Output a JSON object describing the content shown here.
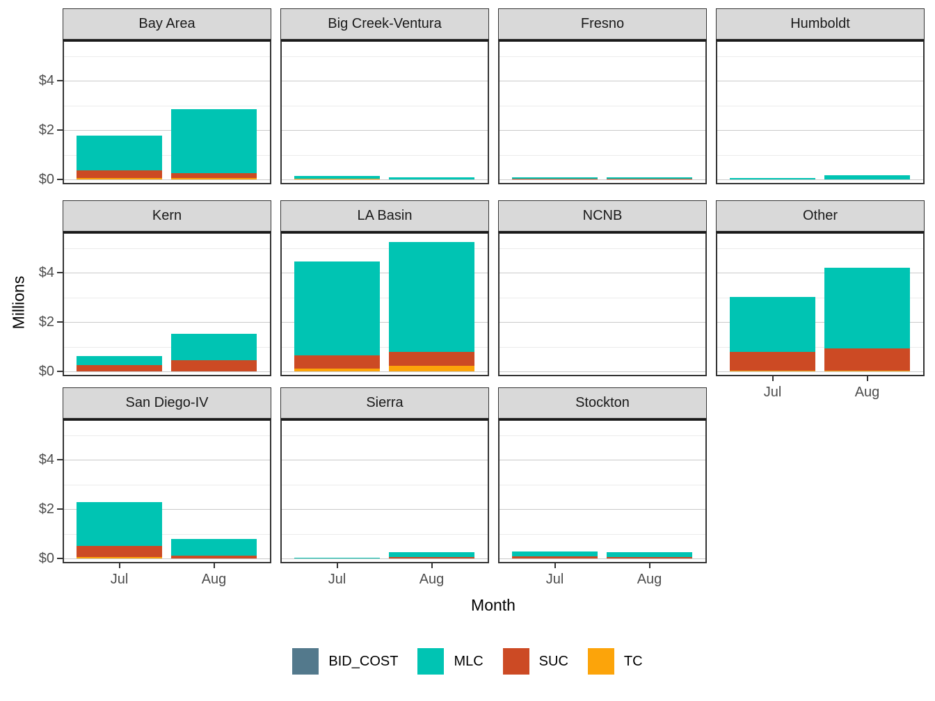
{
  "chart_data": {
    "type": "bar",
    "stacked": true,
    "title": "",
    "xlabel": "Month",
    "ylabel": "Millions",
    "categories": [
      "Jul",
      "Aug"
    ],
    "ylim": [
      0,
      5.72
    ],
    "y_ticks": [
      {
        "value": 0,
        "label": "$0"
      },
      {
        "value": 2,
        "label": "$2"
      },
      {
        "value": 4,
        "label": "$4"
      }
    ],
    "y_minor_ticks": [
      1,
      3,
      5
    ],
    "grid": true,
    "legend_position": "bottom",
    "stack_order_bottom_to_top": [
      "TC",
      "SUC",
      "MLC",
      "BID_COST"
    ],
    "legend_items": [
      {
        "label": "BID_COST",
        "color": "#53798C"
      },
      {
        "label": "MLC",
        "color": "#00C4B3"
      },
      {
        "label": "SUC",
        "color": "#CC4A24"
      },
      {
        "label": "TC",
        "color": "#FCA40A"
      }
    ],
    "facets": [
      {
        "label": "Bay Area",
        "bars": [
          {
            "month": "Jul",
            "values": {
              "BID_COST": 0,
              "MLC": 1.4,
              "SUC": 0.31,
              "TC": 0.06
            }
          },
          {
            "month": "Aug",
            "values": {
              "BID_COST": 0,
              "MLC": 2.58,
              "SUC": 0.2,
              "TC": 0.06
            }
          }
        ]
      },
      {
        "label": "Big Creek-Ventura",
        "bars": [
          {
            "month": "Jul",
            "values": {
              "BID_COST": 0,
              "MLC": 0.13,
              "SUC": 0,
              "TC": 0.02
            }
          },
          {
            "month": "Aug",
            "values": {
              "BID_COST": 0,
              "MLC": 0.08,
              "SUC": 0,
              "TC": 0
            }
          }
        ]
      },
      {
        "label": "Fresno",
        "bars": [
          {
            "month": "Jul",
            "values": {
              "BID_COST": 0,
              "MLC": 0.06,
              "SUC": 0.02,
              "TC": 0
            }
          },
          {
            "month": "Aug",
            "values": {
              "BID_COST": 0,
              "MLC": 0.06,
              "SUC": 0.02,
              "TC": 0
            }
          }
        ]
      },
      {
        "label": "Humboldt",
        "bars": [
          {
            "month": "Jul",
            "values": {
              "BID_COST": 0,
              "MLC": 0.05,
              "SUC": 0,
              "TC": 0
            }
          },
          {
            "month": "Aug",
            "values": {
              "BID_COST": 0,
              "MLC": 0.16,
              "SUC": 0,
              "TC": 0
            }
          }
        ]
      },
      {
        "label": "Kern",
        "bars": [
          {
            "month": "Jul",
            "values": {
              "BID_COST": 0,
              "MLC": 0.38,
              "SUC": 0.25,
              "TC": 0
            }
          },
          {
            "month": "Aug",
            "values": {
              "BID_COST": 0,
              "MLC": 1.09,
              "SUC": 0.44,
              "TC": 0
            }
          }
        ]
      },
      {
        "label": "LA Basin",
        "bars": [
          {
            "month": "Jul",
            "values": {
              "BID_COST": 0,
              "MLC": 3.78,
              "SUC": 0.54,
              "TC": 0.12
            }
          },
          {
            "month": "Aug",
            "values": {
              "BID_COST": 0,
              "MLC": 4.44,
              "SUC": 0.57,
              "TC": 0.22
            }
          }
        ]
      },
      {
        "label": "NCNB",
        "bars": [
          {
            "month": "Jul",
            "values": {
              "BID_COST": 0,
              "MLC": 0,
              "SUC": 0,
              "TC": 0
            }
          },
          {
            "month": "Aug",
            "values": {
              "BID_COST": 0,
              "MLC": 0,
              "SUC": 0,
              "TC": 0
            }
          }
        ]
      },
      {
        "label": "Other",
        "bars": [
          {
            "month": "Jul",
            "values": {
              "BID_COST": 0,
              "MLC": 2.23,
              "SUC": 0.77,
              "TC": 0.02
            }
          },
          {
            "month": "Aug",
            "values": {
              "BID_COST": 0,
              "MLC": 3.25,
              "SUC": 0.92,
              "TC": 0.02
            }
          }
        ]
      },
      {
        "label": "San Diego-IV",
        "bars": [
          {
            "month": "Jul",
            "values": {
              "BID_COST": 0,
              "MLC": 1.78,
              "SUC": 0.43,
              "TC": 0.07
            }
          },
          {
            "month": "Aug",
            "values": {
              "BID_COST": 0,
              "MLC": 0.68,
              "SUC": 0.12,
              "TC": 0
            }
          }
        ]
      },
      {
        "label": "Sierra",
        "bars": [
          {
            "month": "Jul",
            "values": {
              "BID_COST": 0,
              "MLC": 0.04,
              "SUC": 0,
              "TC": 0
            }
          },
          {
            "month": "Aug",
            "values": {
              "BID_COST": 0,
              "MLC": 0.21,
              "SUC": 0.05,
              "TC": 0
            }
          }
        ]
      },
      {
        "label": "Stockton",
        "bars": [
          {
            "month": "Jul",
            "values": {
              "BID_COST": 0,
              "MLC": 0.2,
              "SUC": 0.09,
              "TC": 0
            }
          },
          {
            "month": "Aug",
            "values": {
              "BID_COST": 0,
              "MLC": 0.19,
              "SUC": 0.07,
              "TC": 0
            }
          }
        ]
      }
    ]
  }
}
